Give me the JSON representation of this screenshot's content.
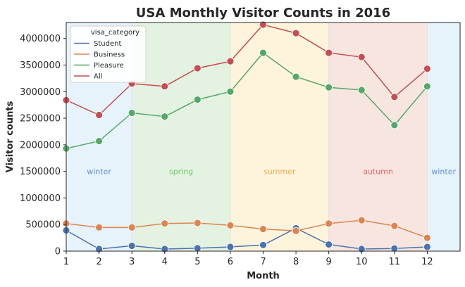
{
  "chart_data": {
    "type": "line",
    "title": "USA Monthly Visitor Counts in 2016",
    "xlabel": "Month",
    "ylabel": "Visitor counts",
    "x": [
      1,
      2,
      3,
      4,
      5,
      6,
      7,
      8,
      9,
      10,
      11,
      12
    ],
    "xlim": [
      1,
      13
    ],
    "xticks": [
      "1",
      "2",
      "3",
      "4",
      "5",
      "6",
      "7",
      "8",
      "9",
      "10",
      "11",
      "12"
    ],
    "ylim": [
      0,
      4300000
    ],
    "yticks": [
      "0",
      "500000",
      "1000000",
      "1500000",
      "2000000",
      "2500000",
      "3000000",
      "3500000",
      "4000000"
    ],
    "grid": false,
    "legend": {
      "title": "visa_category",
      "placement": "top-left"
    },
    "series": [
      {
        "name": "Student",
        "color": "#4c72b0",
        "values": [
          390000,
          40000,
          100000,
          40000,
          55000,
          80000,
          115000,
          430000,
          125000,
          40000,
          50000,
          80000
        ]
      },
      {
        "name": "Business",
        "color": "#dd8452",
        "values": [
          520000,
          445000,
          445000,
          520000,
          530000,
          485000,
          415000,
          380000,
          520000,
          580000,
          475000,
          250000
        ]
      },
      {
        "name": "Pleasure",
        "color": "#55a868",
        "values": [
          1930000,
          2070000,
          2600000,
          2530000,
          2850000,
          3000000,
          3730000,
          3280000,
          3080000,
          3030000,
          2370000,
          3100000
        ]
      },
      {
        "name": "All",
        "color": "#c44e52",
        "values": [
          2840000,
          2560000,
          3150000,
          3100000,
          3440000,
          3570000,
          4260000,
          4100000,
          3730000,
          3650000,
          2900000,
          3430000
        ]
      }
    ],
    "seasons": [
      {
        "label": "winter",
        "from": 1,
        "to": 3,
        "fill": "#ddeefa",
        "text_color": "#5b8fd6"
      },
      {
        "label": "spring",
        "from": 3,
        "to": 6,
        "fill": "#d8ecd4",
        "text_color": "#6acb6a"
      },
      {
        "label": "summer",
        "from": 6,
        "to": 9,
        "fill": "#fdefcc",
        "text_color": "#f2a95a"
      },
      {
        "label": "autumn",
        "from": 9,
        "to": 12,
        "fill": "#f4dcd2",
        "text_color": "#e86464"
      },
      {
        "label": "winter",
        "from": 12,
        "to": 13,
        "fill": "#ddeefa",
        "text_color": "#5b8fd6"
      }
    ]
  }
}
